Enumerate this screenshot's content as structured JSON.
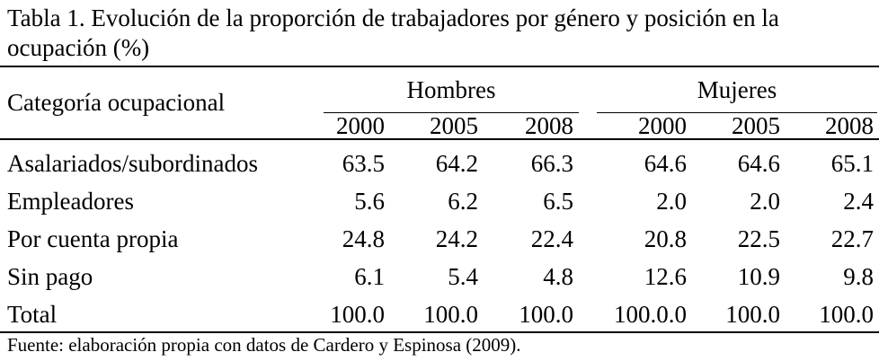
{
  "table": {
    "title": "Tabla 1. Evolución de la proporción de trabajadores por género y posición en la ocupación (%)",
    "stub_header": "Categoría ocupacional",
    "groups": [
      "Hombres",
      "Mujeres"
    ],
    "years": [
      "2000",
      "2005",
      "2008",
      "2000",
      "2005",
      "2008"
    ],
    "rows": [
      {
        "label": "Asalariados/subordinados",
        "values": [
          "63.5",
          "64.2",
          "66.3",
          "64.6",
          "64.6",
          "65.1"
        ]
      },
      {
        "label": "Empleadores",
        "values": [
          "5.6",
          "6.2",
          "6.5",
          "2.0",
          "2.0",
          "2.4"
        ]
      },
      {
        "label": "Por cuenta propia",
        "values": [
          "24.8",
          "24.2",
          "22.4",
          "20.8",
          "22.5",
          "22.7"
        ]
      },
      {
        "label": "Sin pago",
        "values": [
          "6.1",
          "5.4",
          "4.8",
          "12.6",
          "10.9",
          "9.8"
        ]
      },
      {
        "label": "Total",
        "values": [
          "100.0",
          "100.0",
          "100.0",
          "100.0.0",
          "100.0",
          "100.0"
        ]
      }
    ],
    "source": "Fuente: elaboración propia con datos de Cardero y Espinosa (2009)."
  }
}
